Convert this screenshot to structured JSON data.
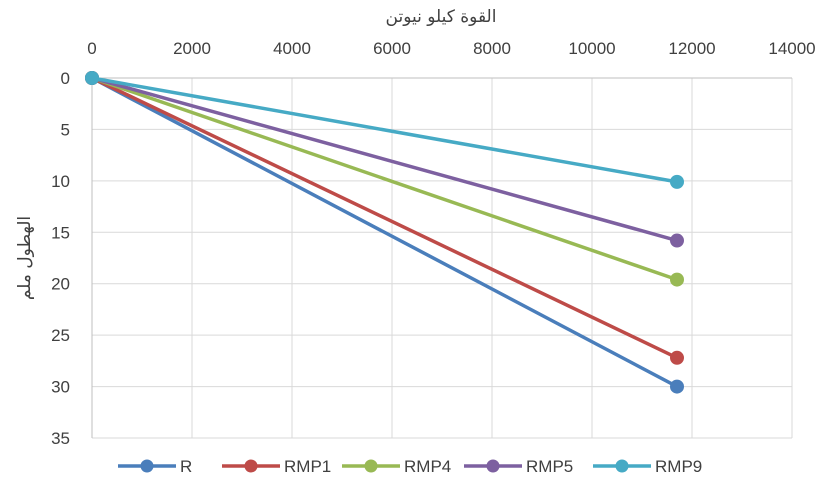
{
  "chart_data": {
    "type": "line",
    "xlabel": "القوة كيلو نيوتن",
    "ylabel": "الهطول ملم",
    "xlim": [
      0,
      14000
    ],
    "ylim": [
      0,
      35
    ],
    "x_ticks": [
      "0",
      "2000",
      "4000",
      "6000",
      "8000",
      "10000",
      "12000",
      "14000"
    ],
    "y_ticks": [
      "0",
      "5",
      "10",
      "15",
      "20",
      "25",
      "30",
      "35"
    ],
    "x_axis_position": "top",
    "y_axis_reversed": true,
    "grid": true,
    "legend_position": "bottom",
    "series": [
      {
        "name": "R",
        "color": "#4a7ebb",
        "points": [
          [
            0,
            0
          ],
          [
            11700,
            30.0
          ]
        ]
      },
      {
        "name": "RMP1",
        "color": "#be4b48",
        "points": [
          [
            0,
            0
          ],
          [
            11700,
            27.2
          ]
        ]
      },
      {
        "name": "RMP4",
        "color": "#98b954",
        "points": [
          [
            0,
            0
          ],
          [
            11700,
            19.6
          ]
        ]
      },
      {
        "name": "RMP5",
        "color": "#7d60a0",
        "points": [
          [
            0,
            0
          ],
          [
            11700,
            15.8
          ]
        ]
      },
      {
        "name": "RMP9",
        "color": "#46aac5",
        "points": [
          [
            0,
            0
          ],
          [
            11700,
            10.1
          ]
        ]
      }
    ]
  }
}
